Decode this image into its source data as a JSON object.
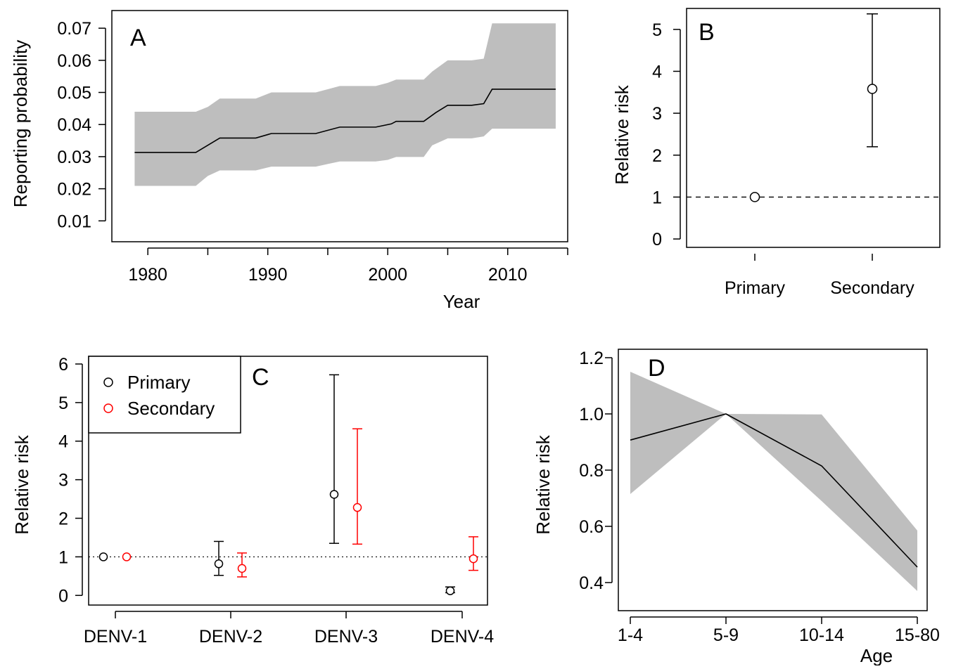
{
  "chart_data": [
    {
      "panel": "A",
      "type": "area",
      "panel_label": "A",
      "xlabel": "Year",
      "ylabel": "Reporting probability",
      "xlim": [
        1977,
        2015
      ],
      "ylim": [
        0.0035,
        0.0755
      ],
      "x_ticks": [
        1980,
        1985,
        1990,
        1995,
        2000,
        2005,
        2010,
        2015
      ],
      "x_tick_labels": [
        "1980",
        "",
        "1990",
        "",
        "2000",
        "",
        "2010",
        ""
      ],
      "y_ticks": [
        0.01,
        0.02,
        0.03,
        0.04,
        0.05,
        0.06,
        0.07
      ],
      "y_tick_labels": [
        "0.01",
        "0.02",
        "0.03",
        "0.04",
        "0.05",
        "0.06",
        "0.07"
      ],
      "series": [
        {
          "x": [
            1978.9,
            1984,
            1986,
            1989,
            1990.3,
            1994,
            1996,
            1999,
            2000.3,
            2000.7,
            2003,
            2004,
            2005,
            2007,
            2008,
            2008.7,
            2014
          ],
          "y": [
            0.0313,
            0.0313,
            0.0358,
            0.0358,
            0.0372,
            0.0372,
            0.0392,
            0.0392,
            0.0402,
            0.041,
            0.041,
            0.0437,
            0.046,
            0.046,
            0.0465,
            0.051,
            0.051
          ]
        }
      ],
      "band": {
        "x": [
          1978.9,
          1984,
          1985,
          1986,
          1989,
          1990.3,
          1994,
          1995,
          1996,
          1999,
          2000,
          2000.7,
          2003,
          2003.7,
          2005,
          2007,
          2008,
          2008.7,
          2014
        ],
        "lower": [
          0.0209,
          0.0209,
          0.024,
          0.0257,
          0.0257,
          0.0269,
          0.0269,
          0.0277,
          0.0285,
          0.0285,
          0.029,
          0.0299,
          0.0299,
          0.0335,
          0.0357,
          0.0357,
          0.0363,
          0.0387,
          0.0387
        ],
        "upper": [
          0.044,
          0.044,
          0.0455,
          0.0481,
          0.0481,
          0.05,
          0.05,
          0.051,
          0.052,
          0.052,
          0.053,
          0.054,
          0.054,
          0.0565,
          0.06,
          0.06,
          0.0605,
          0.0715,
          0.0715
        ]
      }
    },
    {
      "panel": "B",
      "type": "scatter",
      "panel_label": "B",
      "ylabel": "Relative risk",
      "categories": [
        "Primary",
        "Secondary"
      ],
      "ylim": [
        -0.2,
        5.5
      ],
      "y_ticks": [
        0,
        1,
        2,
        3,
        4,
        5
      ],
      "y_tick_labels": [
        "0",
        "1",
        "2",
        "3",
        "4",
        "5"
      ],
      "values": [
        1.0,
        3.58
      ],
      "lower": [
        null,
        2.2
      ],
      "upper": [
        null,
        5.37
      ],
      "reference_line": 1
    },
    {
      "panel": "C",
      "type": "scatter",
      "panel_label": "C",
      "ylabel": "Relative risk",
      "categories": [
        "DENV-1",
        "DENV-2",
        "DENV-3",
        "DENV-4"
      ],
      "ylim": [
        -0.25,
        6.2
      ],
      "y_ticks": [
        0,
        1,
        2,
        3,
        4,
        5,
        6
      ],
      "y_tick_labels": [
        "0",
        "1",
        "2",
        "3",
        "4",
        "5",
        "6"
      ],
      "reference_line": 1,
      "legend": {
        "position": "top-left"
      },
      "series": [
        {
          "name": "Primary",
          "color": "#000000",
          "values": [
            1.0,
            0.82,
            2.62,
            0.12
          ],
          "lower": [
            null,
            0.52,
            1.35,
            0.07
          ],
          "upper": [
            null,
            1.4,
            5.72,
            0.22
          ]
        },
        {
          "name": "Secondary",
          "color": "#ff0000",
          "values": [
            1.0,
            0.7,
            2.28,
            0.95
          ],
          "lower": [
            null,
            0.48,
            1.33,
            0.65
          ],
          "upper": [
            null,
            1.1,
            4.32,
            1.52
          ]
        }
      ]
    },
    {
      "panel": "D",
      "type": "area",
      "panel_label": "D",
      "xlabel": "Age",
      "ylabel": "Relative risk",
      "categories": [
        "1-4",
        "5-9",
        "10-14",
        "15-80"
      ],
      "ylim": [
        0.3,
        1.23
      ],
      "y_ticks": [
        0.4,
        0.6,
        0.8,
        1.0,
        1.2
      ],
      "y_tick_labels": [
        "0.4",
        "0.6",
        "0.8",
        "1.0",
        "1.2"
      ],
      "values": [
        0.907,
        1.0,
        0.815,
        0.455
      ],
      "lower": [
        0.715,
        1.0,
        0.69,
        0.37
      ],
      "upper": [
        1.15,
        1.0,
        0.998,
        0.585
      ]
    }
  ]
}
